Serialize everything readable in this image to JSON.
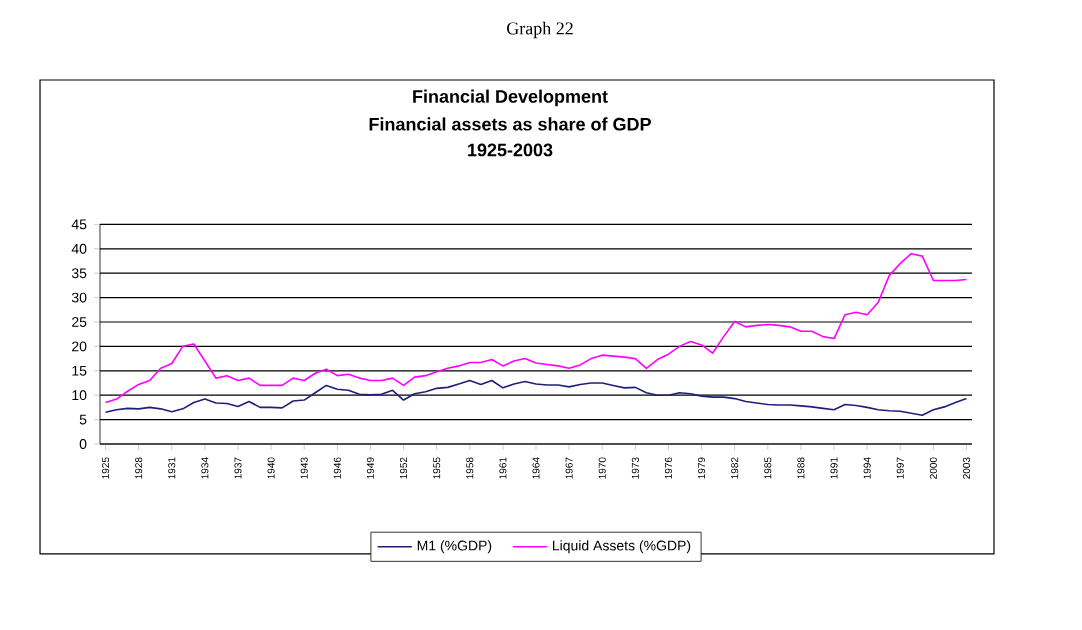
{
  "chart_data": {
    "type": "line",
    "title": "Financial Development",
    "subtitle": "Financial assets as share of GDP",
    "annotations": [
      "Graph 22",
      "1925-2003"
    ],
    "x": [
      1925,
      1926,
      1927,
      1928,
      1929,
      1930,
      1931,
      1932,
      1933,
      1934,
      1935,
      1936,
      1937,
      1938,
      1939,
      1940,
      1941,
      1942,
      1943,
      1944,
      1945,
      1946,
      1947,
      1948,
      1949,
      1950,
      1951,
      1952,
      1953,
      1954,
      1955,
      1956,
      1957,
      1958,
      1959,
      1960,
      1961,
      1962,
      1963,
      1964,
      1965,
      1966,
      1967,
      1968,
      1969,
      1970,
      1971,
      1972,
      1973,
      1974,
      1975,
      1976,
      1977,
      1978,
      1979,
      1980,
      1981,
      1982,
      1983,
      1984,
      1985,
      1986,
      1987,
      1988,
      1989,
      1990,
      1991,
      1992,
      1993,
      1994,
      1995,
      1996,
      1997,
      1998,
      1999,
      2000,
      2001,
      2002,
      2003
    ],
    "series": [
      {
        "name": "M1 (%GDP)",
        "color": "#1f1f7a",
        "values": [
          6.5,
          7,
          7.3,
          7.2,
          7.5,
          7.2,
          6.6,
          7.2,
          8.5,
          9.2,
          8.4,
          8.3,
          7.7,
          8.7,
          7.5,
          7.5,
          7.4,
          8.8,
          9,
          10.5,
          12,
          11.2,
          11,
          10.2,
          10.1,
          10.2,
          11,
          9,
          10.3,
          10.7,
          11.4,
          11.6,
          12.3,
          13,
          12.2,
          13,
          11.5,
          12.3,
          12.8,
          12.3,
          12.1,
          12.1,
          11.7,
          12.2,
          12.5,
          12.5,
          12,
          11.5,
          11.6,
          10.5,
          10,
          10,
          10.5,
          10.3,
          9.8,
          9.6,
          9.6,
          9.3,
          8.7,
          8.4,
          8.1,
          8,
          8,
          7.8,
          7.6,
          7.3,
          7,
          8.1,
          7.9,
          7.5,
          7,
          6.8,
          6.7,
          6.3,
          5.9,
          7,
          7.6,
          8.5,
          9.3
        ]
      },
      {
        "name": "Liquid Assets (%GDP)",
        "color": "#ff00ff",
        "values": [
          8.5,
          9.2,
          10.8,
          12.2,
          13,
          15.5,
          16.5,
          20,
          20.5,
          17,
          13.5,
          14,
          13,
          13.5,
          12,
          12,
          12,
          13.5,
          13,
          14.5,
          15.3,
          14,
          14.3,
          13.5,
          13,
          13,
          13.5,
          12,
          13.7,
          14,
          14.8,
          15.5,
          16,
          16.7,
          16.7,
          17.3,
          16,
          17,
          17.5,
          16.6,
          16.3,
          16,
          15.5,
          16.2,
          17.5,
          18.2,
          18,
          17.8,
          17.5,
          15.5,
          17.3,
          18.4,
          20,
          21,
          20.3,
          18.6,
          22,
          25.1,
          24,
          24.3,
          24.5,
          24.3,
          24,
          23.1,
          23.1,
          22,
          21.6,
          26.5,
          27,
          26.5,
          29,
          34.5,
          37,
          39,
          38.5,
          33.5,
          33.5,
          33.5,
          33.7
        ]
      }
    ],
    "xlim": [
      1924.5,
      2003.5
    ],
    "xticks": [
      1925,
      1928,
      1931,
      1934,
      1937,
      1940,
      1943,
      1946,
      1949,
      1952,
      1955,
      1958,
      1961,
      1964,
      1967,
      1970,
      1973,
      1976,
      1979,
      1982,
      1985,
      1988,
      1991,
      1994,
      1997,
      2000,
      2003
    ],
    "ylim": [
      0,
      45
    ],
    "yticks": [
      0,
      5,
      10,
      15,
      20,
      25,
      30,
      35,
      40,
      45
    ],
    "grid": "y",
    "legend": "bottom",
    "marker": "none",
    "line_style": "solid"
  }
}
